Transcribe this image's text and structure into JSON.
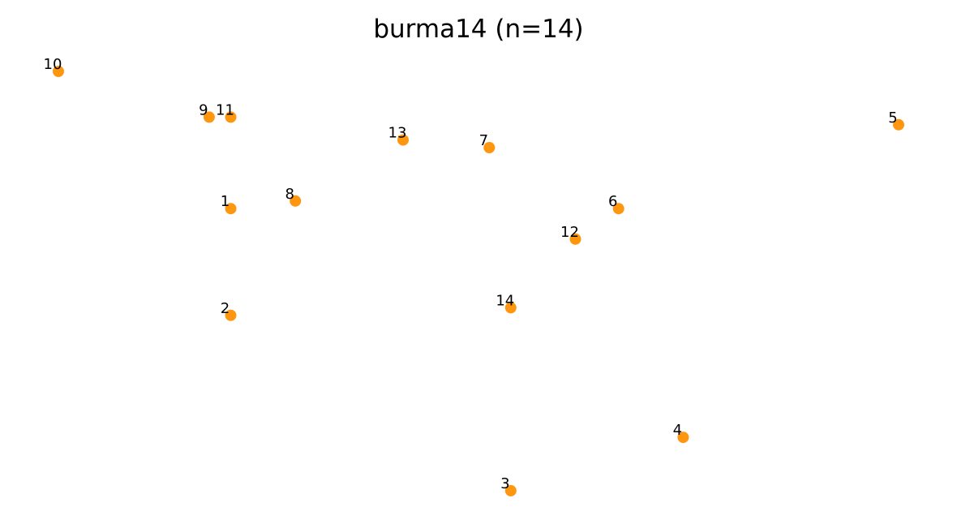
{
  "chart_data": {
    "type": "scatter",
    "title": "burma14  (n=14)",
    "xlabel": "",
    "ylabel": "",
    "axes_visible": false,
    "grid": false,
    "legend": "none",
    "marker_color": "#ff960f",
    "xlim": [
      93.9,
      98.45
    ],
    "ylim": [
      16.1,
      22.2
    ],
    "points": [
      {
        "label": "1",
        "x": 94.8,
        "y": 20.3
      },
      {
        "label": "2",
        "x": 94.8,
        "y": 18.9
      },
      {
        "label": "3",
        "x": 96.1,
        "y": 16.6
      },
      {
        "label": "4",
        "x": 96.9,
        "y": 17.3
      },
      {
        "label": "5",
        "x": 97.9,
        "y": 21.4
      },
      {
        "label": "6",
        "x": 96.6,
        "y": 20.3
      },
      {
        "label": "7",
        "x": 96.0,
        "y": 21.1
      },
      {
        "label": "8",
        "x": 95.1,
        "y": 20.4
      },
      {
        "label": "9",
        "x": 94.7,
        "y": 21.5
      },
      {
        "label": "10",
        "x": 94.0,
        "y": 22.1
      },
      {
        "label": "11",
        "x": 94.8,
        "y": 21.5
      },
      {
        "label": "12",
        "x": 96.4,
        "y": 19.9
      },
      {
        "label": "13",
        "x": 95.6,
        "y": 21.2
      },
      {
        "label": "14",
        "x": 96.1,
        "y": 19.0
      }
    ]
  }
}
